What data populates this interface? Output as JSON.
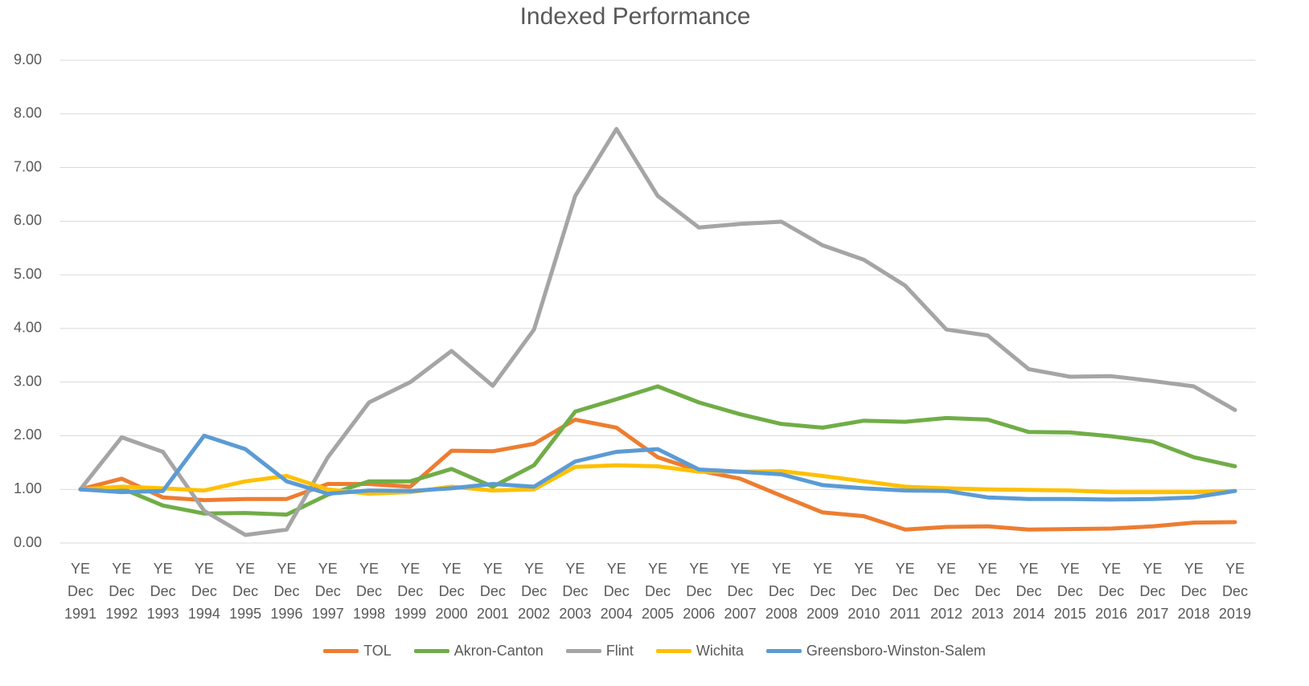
{
  "chart_data": {
    "type": "line",
    "title": "Indexed Performance",
    "categories": [
      "YE Dec 1991",
      "YE Dec 1992",
      "YE Dec 1993",
      "YE Dec 1994",
      "YE Dec 1995",
      "YE Dec 1996",
      "YE Dec 1997",
      "YE Dec 1998",
      "YE Dec 1999",
      "YE Dec 2000",
      "YE Dec 2001",
      "YE Dec 2002",
      "YE Dec 2003",
      "YE Dec 2004",
      "YE Dec 2005",
      "YE Dec 2006",
      "YE Dec 2007",
      "YE Dec 2008",
      "YE Dec 2009",
      "YE Dec 2010",
      "YE Dec 2011",
      "YE Dec 2012",
      "YE Dec 2013",
      "YE Dec 2014",
      "YE Dec 2015",
      "YE Dec 2016",
      "YE Dec 2017",
      "YE Dec 2018",
      "YE Dec 2019"
    ],
    "series": [
      {
        "name": "TOL",
        "color": "#ed7d31",
        "values": [
          1.0,
          1.2,
          0.85,
          0.8,
          0.82,
          0.82,
          1.1,
          1.1,
          1.05,
          1.72,
          1.71,
          1.85,
          2.3,
          2.15,
          1.6,
          1.35,
          1.2,
          0.88,
          0.57,
          0.5,
          0.25,
          0.3,
          0.31,
          0.25,
          0.26,
          0.27,
          0.31,
          0.38,
          0.39
        ]
      },
      {
        "name": "Akron-Canton",
        "color": "#70ad47",
        "values": [
          1.0,
          1.02,
          0.7,
          0.55,
          0.56,
          0.53,
          0.9,
          1.15,
          1.15,
          1.38,
          1.05,
          1.45,
          2.45,
          2.68,
          2.92,
          2.62,
          2.4,
          2.22,
          2.15,
          2.28,
          2.26,
          2.33,
          2.3,
          2.07,
          2.06,
          1.99,
          1.89,
          1.6,
          1.43
        ]
      },
      {
        "name": "Flint",
        "color": "#a5a5a5",
        "values": [
          1.0,
          1.97,
          1.7,
          0.6,
          0.15,
          0.25,
          1.6,
          2.62,
          3.0,
          3.58,
          2.93,
          3.98,
          6.47,
          7.72,
          6.47,
          5.88,
          5.95,
          5.99,
          5.55,
          5.28,
          4.8,
          3.98,
          3.87,
          3.24,
          3.1,
          3.11,
          3.02,
          2.92,
          2.48
        ]
      },
      {
        "name": "Wichita",
        "color": "#ffc000",
        "values": [
          1.0,
          1.05,
          1.02,
          0.98,
          1.15,
          1.25,
          1.0,
          0.92,
          0.95,
          1.05,
          0.98,
          1.0,
          1.42,
          1.45,
          1.43,
          1.33,
          1.33,
          1.34,
          1.25,
          1.15,
          1.05,
          1.02,
          1.0,
          0.99,
          0.98,
          0.95,
          0.95,
          0.95,
          0.97
        ]
      },
      {
        "name": "Greensboro-Winston-Salem",
        "color": "#5b9bd5",
        "values": [
          1.0,
          0.95,
          0.97,
          2.0,
          1.75,
          1.15,
          0.92,
          0.98,
          0.97,
          1.02,
          1.1,
          1.05,
          1.52,
          1.7,
          1.75,
          1.37,
          1.33,
          1.28,
          1.08,
          1.02,
          0.98,
          0.97,
          0.85,
          0.82,
          0.82,
          0.81,
          0.82,
          0.85,
          0.97
        ]
      }
    ],
    "ylim": [
      0,
      9
    ],
    "yticks": [
      {
        "value": 0,
        "label": "0.00"
      },
      {
        "value": 1,
        "label": "1.00"
      },
      {
        "value": 2,
        "label": "2.00"
      },
      {
        "value": 3,
        "label": "3.00"
      },
      {
        "value": 4,
        "label": "4.00"
      },
      {
        "value": 5,
        "label": "5.00"
      },
      {
        "value": 6,
        "label": "6.00"
      },
      {
        "value": 7,
        "label": "7.00"
      },
      {
        "value": 8,
        "label": "8.00"
      },
      {
        "value": 9,
        "label": "9.00"
      }
    ],
    "grid": true,
    "legend": "bottom"
  }
}
